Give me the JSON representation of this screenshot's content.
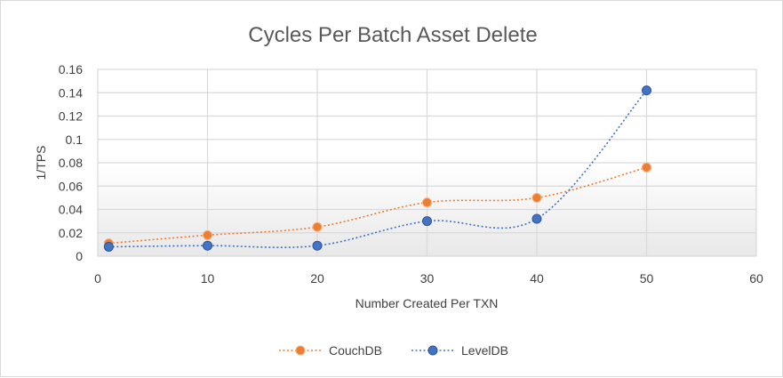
{
  "chart_data": {
    "type": "scatter",
    "title": "Cycles Per Batch Asset Delete",
    "xlabel": "Number Created Per TXN",
    "ylabel": "1/TPS",
    "xlim": [
      0,
      60
    ],
    "ylim": [
      0,
      0.16
    ],
    "x_ticks": [
      "0",
      "10",
      "20",
      "30",
      "40",
      "50",
      "60"
    ],
    "y_ticks": [
      "0",
      "0.02",
      "0.04",
      "0.06",
      "0.08",
      "0.1",
      "0.12",
      "0.14",
      "0.16"
    ],
    "grid": true,
    "legend_position": "bottom",
    "series": [
      {
        "name": "CouchDB",
        "color": "#ED7D31",
        "points": [
          [
            1,
            0.011
          ],
          [
            10,
            0.018
          ],
          [
            20,
            0.025
          ],
          [
            30,
            0.046
          ],
          [
            40,
            0.05
          ],
          [
            50,
            0.076
          ]
        ]
      },
      {
        "name": "LevelDB",
        "color": "#4472C4",
        "points": [
          [
            1,
            0.008
          ],
          [
            10,
            0.009
          ],
          [
            20,
            0.009
          ],
          [
            30,
            0.03
          ],
          [
            40,
            0.032
          ],
          [
            50,
            0.142
          ]
        ]
      }
    ]
  }
}
